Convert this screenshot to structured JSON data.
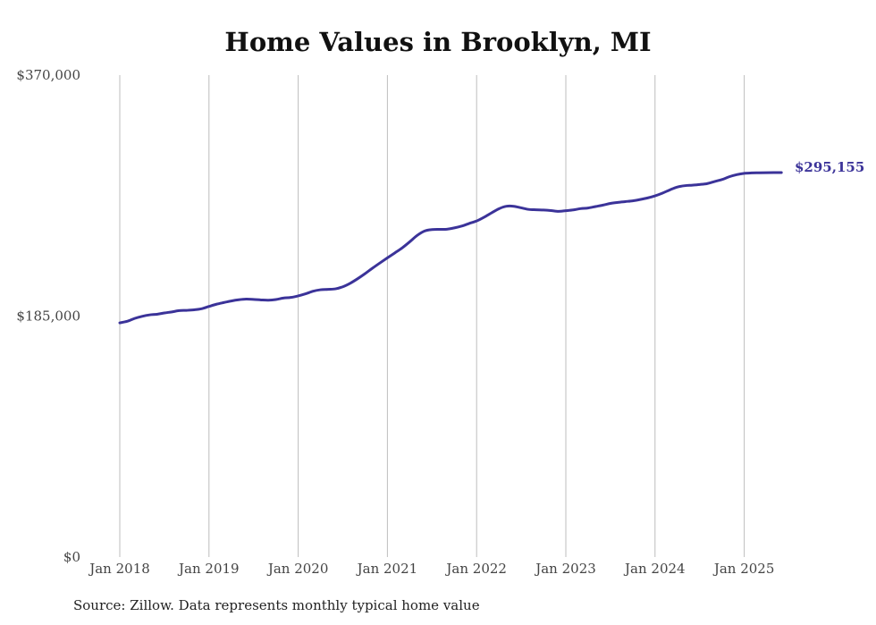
{
  "chart_data": {
    "type": "line",
    "title": "Home Values in Brooklyn, MI",
    "xlabel": "",
    "ylabel": "",
    "ylim": [
      0,
      370000
    ],
    "y_ticks": [
      "$0",
      "$185,000",
      "$370,000"
    ],
    "y_tick_values": [
      0,
      185000,
      370000
    ],
    "x_range": [
      "2018-01",
      "2025-06"
    ],
    "x_ticks": [
      "Jan 2018",
      "Jan 2019",
      "Jan 2020",
      "Jan 2021",
      "Jan 2022",
      "Jan 2023",
      "Jan 2024",
      "Jan 2025"
    ],
    "grid": "vertical",
    "line_color": "#3b3399",
    "series": [
      {
        "x": [
          "2018-01",
          "2018-02",
          "2018-03",
          "2018-04",
          "2018-05",
          "2018-06",
          "2018-07",
          "2018-08",
          "2018-09",
          "2018-10",
          "2018-11",
          "2018-12",
          "2019-01",
          "2019-02",
          "2019-03",
          "2019-04",
          "2019-05",
          "2019-06",
          "2019-07",
          "2019-08",
          "2019-09",
          "2019-10",
          "2019-11",
          "2019-12",
          "2020-01",
          "2020-02",
          "2020-03",
          "2020-04",
          "2020-05",
          "2020-06",
          "2020-07",
          "2020-08",
          "2020-09",
          "2020-10",
          "2020-11",
          "2020-12",
          "2021-01",
          "2021-02",
          "2021-03",
          "2021-04",
          "2021-05",
          "2021-06",
          "2021-07",
          "2021-08",
          "2021-09",
          "2021-10",
          "2021-11",
          "2021-12",
          "2022-01",
          "2022-02",
          "2022-03",
          "2022-04",
          "2022-05",
          "2022-06",
          "2022-07",
          "2022-08",
          "2022-09",
          "2022-10",
          "2022-11",
          "2022-12",
          "2023-01",
          "2023-02",
          "2023-03",
          "2023-04",
          "2023-05",
          "2023-06",
          "2023-07",
          "2023-08",
          "2023-09",
          "2023-10",
          "2023-11",
          "2023-12",
          "2024-01",
          "2024-02",
          "2024-03",
          "2024-04",
          "2024-05",
          "2024-06",
          "2024-07",
          "2024-08",
          "2024-09",
          "2024-10",
          "2024-11",
          "2024-12",
          "2025-01",
          "2025-02",
          "2025-03",
          "2025-04",
          "2025-05",
          "2025-06"
        ],
        "values": [
          179800,
          181000,
          183200,
          184800,
          185900,
          186400,
          187400,
          188200,
          189200,
          189400,
          189800,
          190600,
          192400,
          194100,
          195400,
          196600,
          197500,
          198000,
          197800,
          197400,
          197200,
          197700,
          198800,
          199300,
          200500,
          202100,
          204100,
          205200,
          205500,
          205900,
          207500,
          210200,
          213700,
          217600,
          221800,
          225800,
          229700,
          233500,
          237400,
          242000,
          246900,
          250300,
          251400,
          251600,
          251700,
          252700,
          254100,
          256100,
          258000,
          260900,
          264200,
          267400,
          269300,
          269300,
          268100,
          266900,
          266600,
          266400,
          266000,
          265400,
          265900,
          266500,
          267500,
          268000,
          269100,
          270200,
          271500,
          272300,
          272900,
          273500,
          274500,
          275700,
          277300,
          279400,
          281900,
          284100,
          285100,
          285500,
          286000,
          286700,
          288300,
          289800,
          292000,
          293600,
          294600,
          294900,
          295000,
          295100,
          295155,
          295155
        ],
        "end_label": "$295,155"
      }
    ],
    "source": "Source: Zillow. Data represents monthly typical home value"
  }
}
